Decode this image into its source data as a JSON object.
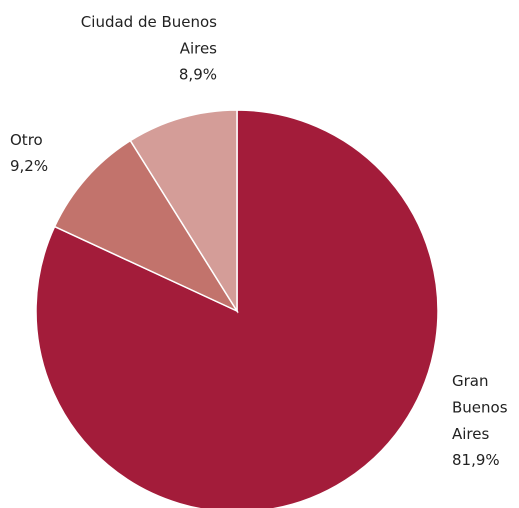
{
  "chart_data": {
    "type": "pie",
    "categories": [
      "Gran Buenos Aires",
      "Otro",
      "Ciudad de Buenos Aires"
    ],
    "values": [
      81.9,
      9.2,
      8.9
    ],
    "value_labels": [
      "81,9%",
      "9,2%",
      "8,9%"
    ],
    "colors": [
      "#a31c3a",
      "#c2736c",
      "#d49d98"
    ]
  }
}
